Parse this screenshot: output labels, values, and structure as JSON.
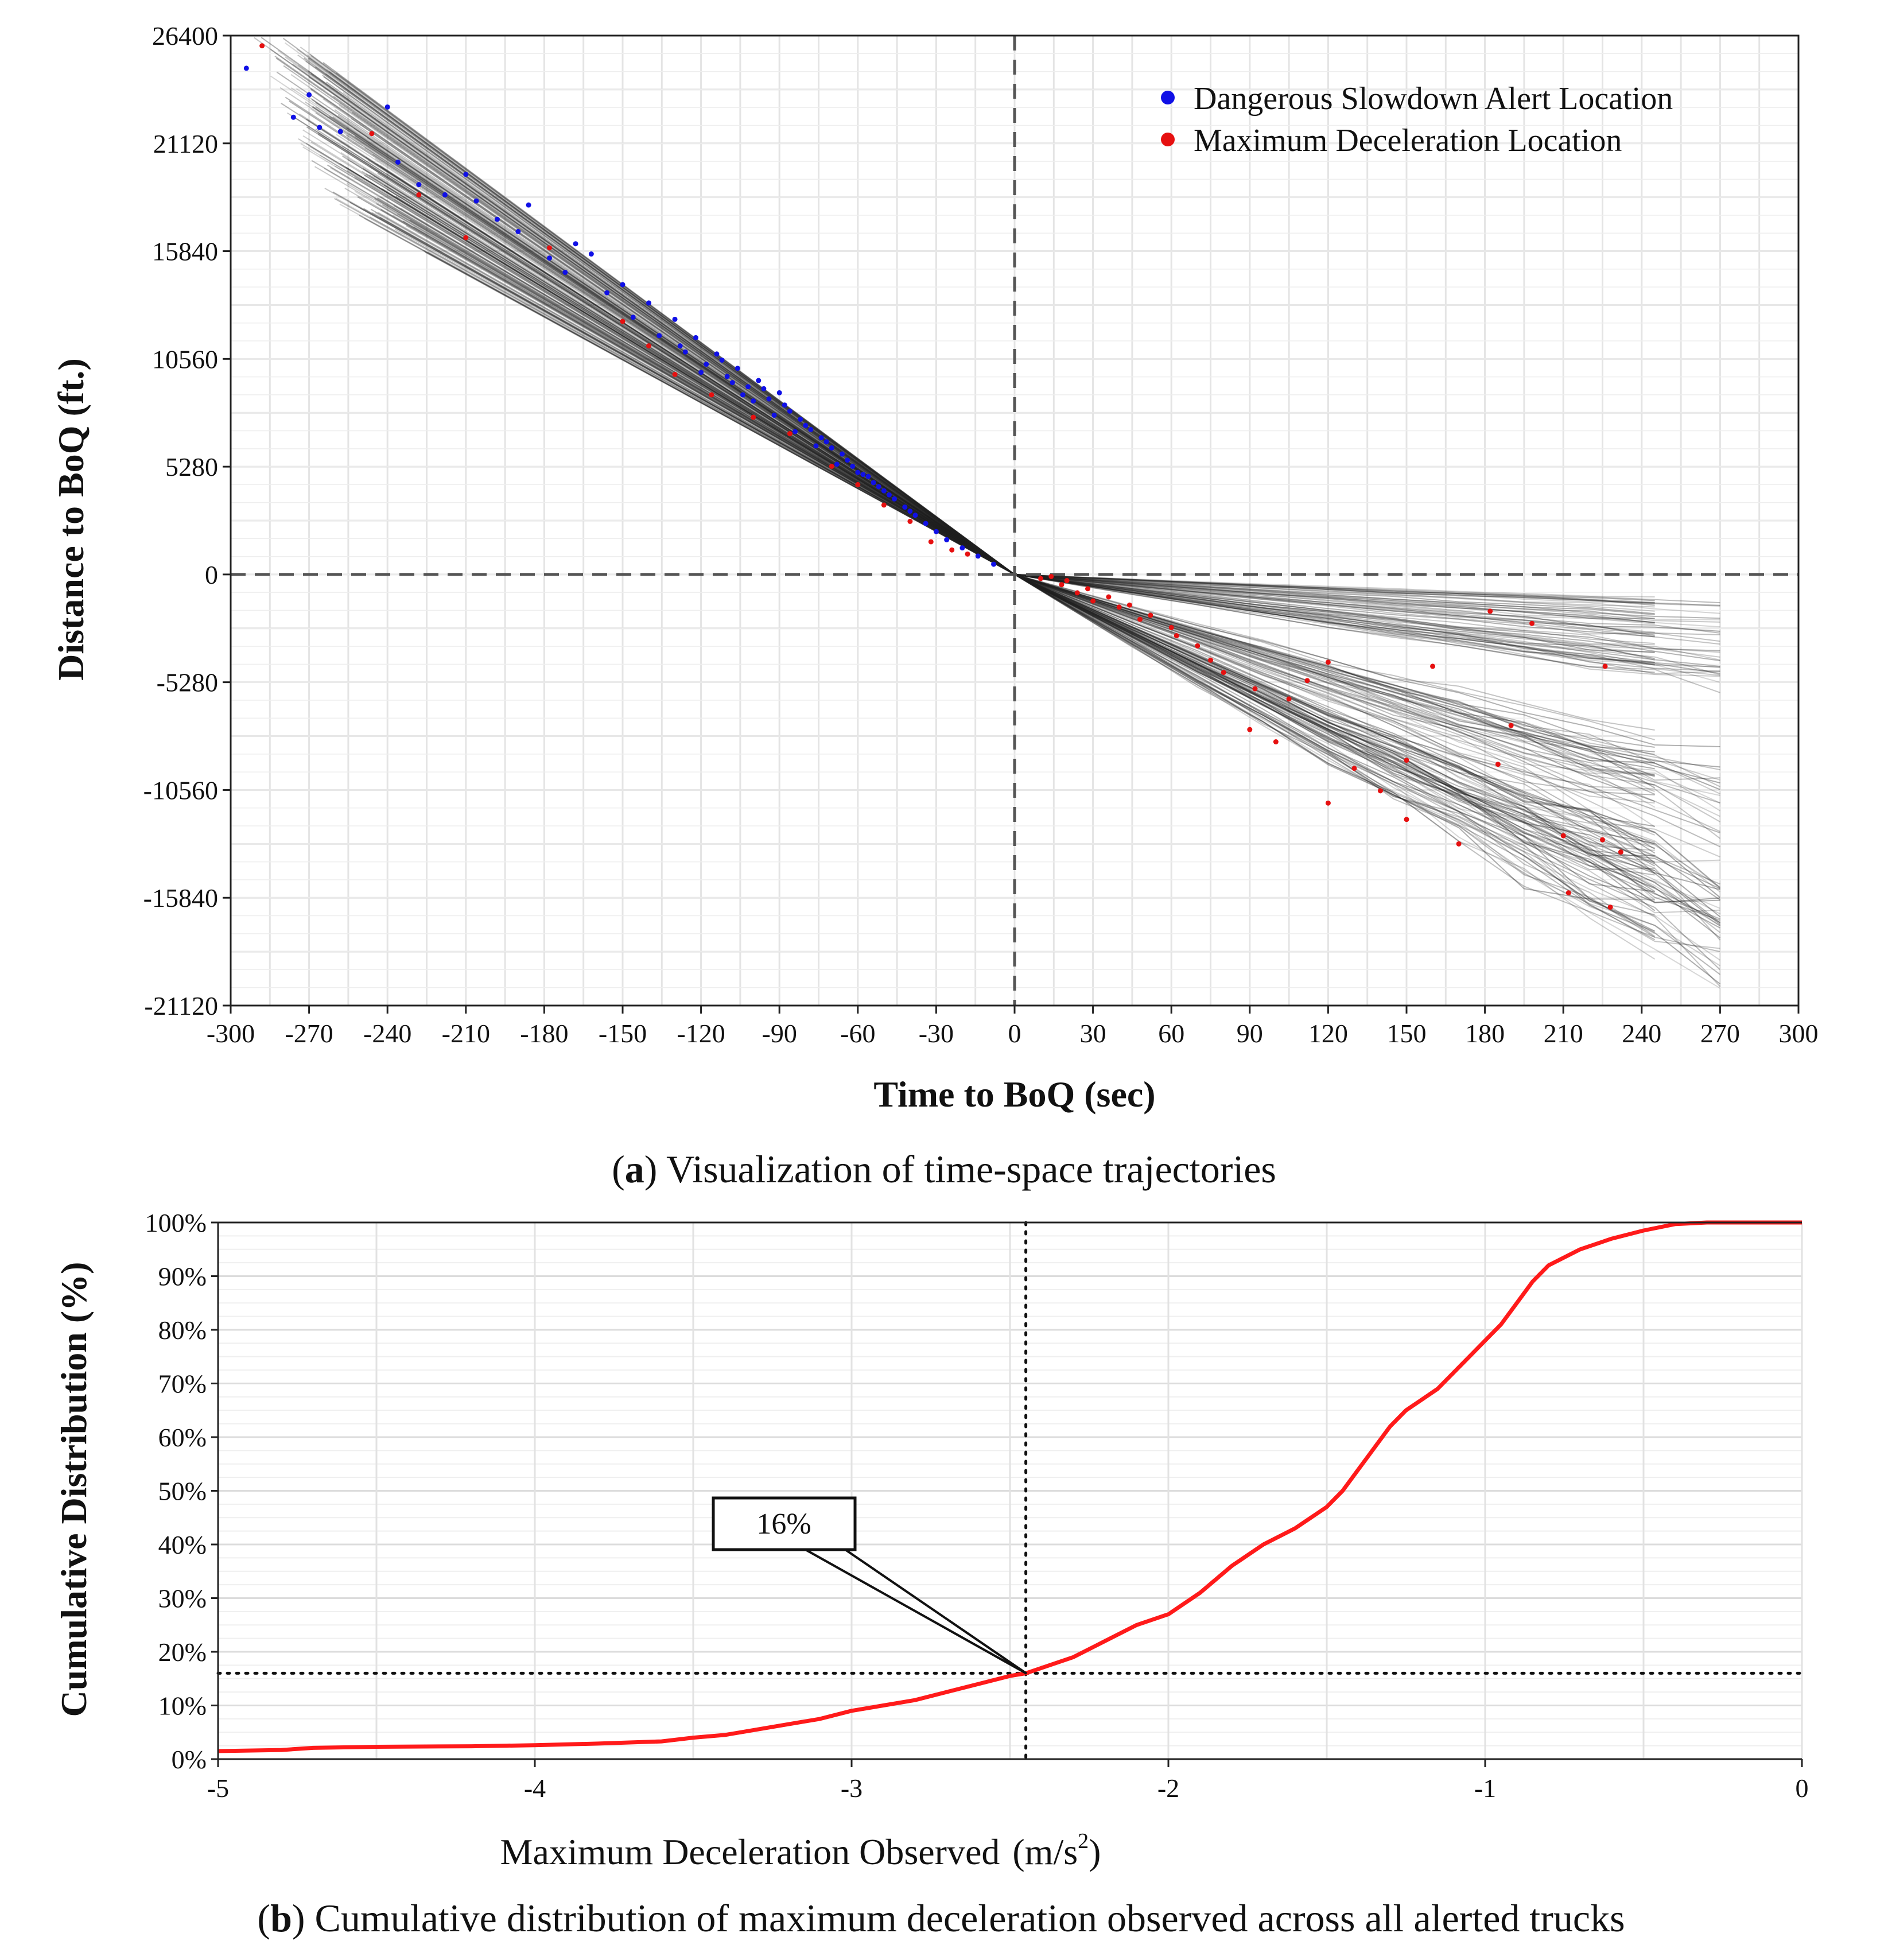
{
  "chart_data": [
    {
      "type": "scatter",
      "panel": "a",
      "caption_letter": "a",
      "caption_rest": ") Visualization of time-space trajectories",
      "xlabel": "Time to BoQ (sec)",
      "ylabel": "Distance to BoQ (ft.)",
      "xlim": [
        -300,
        300
      ],
      "ylim": [
        -21120,
        26400
      ],
      "xticks": [
        -300,
        -270,
        -240,
        -210,
        -180,
        -150,
        -120,
        -90,
        -60,
        -30,
        0,
        30,
        60,
        90,
        120,
        150,
        180,
        210,
        240,
        270,
        300
      ],
      "yticks": [
        26400,
        21120,
        15840,
        10560,
        5280,
        0,
        -5280,
        -10560,
        -15840,
        -21120
      ],
      "grid": true,
      "reference_lines": {
        "x": 0,
        "y": 0,
        "style": "dashed"
      },
      "legend_position": "top-right",
      "series": [
        {
          "name": "Dangerous Slowdown Alert Location",
          "color": "#1010e6",
          "points": [
            [
              -294,
              24800
            ],
            [
              -276,
              22400
            ],
            [
              -270,
              23500
            ],
            [
              -266,
              21900
            ],
            [
              -258,
              21700
            ],
            [
              -240,
              22900
            ],
            [
              -236,
              20200
            ],
            [
              -228,
              19100
            ],
            [
              -218,
              18600
            ],
            [
              -210,
              19600
            ],
            [
              -206,
              18300
            ],
            [
              -198,
              17400
            ],
            [
              -190,
              16800
            ],
            [
              -186,
              18100
            ],
            [
              -178,
              15500
            ],
            [
              -172,
              14800
            ],
            [
              -168,
              16200
            ],
            [
              -162,
              15700
            ],
            [
              -156,
              13800
            ],
            [
              -150,
              14200
            ],
            [
              -146,
              12600
            ],
            [
              -140,
              13300
            ],
            [
              -136,
              11700
            ],
            [
              -130,
              12500
            ],
            [
              -126,
              10900
            ],
            [
              -122,
              11600
            ],
            [
              -118,
              10300
            ],
            [
              -114,
              10800
            ],
            [
              -110,
              9700
            ],
            [
              -106,
              10100
            ],
            [
              -102,
              9200
            ],
            [
              -98,
              9500
            ],
            [
              -94,
              8600
            ],
            [
              -90,
              8900
            ],
            [
              -86,
              8000
            ],
            [
              -82,
              7600
            ],
            [
              -78,
              7100
            ],
            [
              -74,
              6700
            ],
            [
              -70,
              6200
            ],
            [
              -66,
              5900
            ],
            [
              -62,
              5300
            ],
            [
              -58,
              4900
            ],
            [
              -54,
              4500
            ],
            [
              -50,
              4100
            ],
            [
              -46,
              3700
            ],
            [
              -42,
              3300
            ],
            [
              -38,
              2900
            ],
            [
              -34,
              2500
            ],
            [
              -30,
              2100
            ],
            [
              -26,
              1700
            ],
            [
              -20,
              1300
            ],
            [
              -14,
              900
            ],
            [
              -8,
              500
            ],
            [
              -128,
              11200
            ],
            [
              -120,
              9900
            ],
            [
              -112,
              10500
            ],
            [
              -104,
              8800
            ],
            [
              -96,
              9100
            ],
            [
              -88,
              8300
            ],
            [
              -80,
              7300
            ],
            [
              -72,
              6500
            ],
            [
              -64,
              5600
            ],
            [
              -56,
              4800
            ],
            [
              -48,
              3900
            ],
            [
              -40,
              3100
            ],
            [
              -108,
              9400
            ],
            [
              -100,
              8500
            ],
            [
              -92,
              7800
            ],
            [
              -84,
              7000
            ],
            [
              -76,
              6300
            ],
            [
              -68,
              5400
            ],
            [
              -60,
              5000
            ],
            [
              -52,
              4300
            ]
          ]
        },
        {
          "name": "Maximum Deceleration Location",
          "color": "#e61010",
          "points": [
            [
              -288,
              25900
            ],
            [
              -246,
              21600
            ],
            [
              -228,
              18600
            ],
            [
              -210,
              16500
            ],
            [
              -178,
              16000
            ],
            [
              -150,
              12400
            ],
            [
              -140,
              11200
            ],
            [
              -130,
              9800
            ],
            [
              -116,
              8800
            ],
            [
              -100,
              7700
            ],
            [
              -86,
              6900
            ],
            [
              -70,
              5300
            ],
            [
              -60,
              4400
            ],
            [
              -50,
              3400
            ],
            [
              -40,
              2600
            ],
            [
              -32,
              1600
            ],
            [
              -24,
              1200
            ],
            [
              -18,
              1000
            ],
            [
              10,
              -200
            ],
            [
              18,
              -500
            ],
            [
              24,
              -900
            ],
            [
              30,
              -1300
            ],
            [
              36,
              -1100
            ],
            [
              44,
              -1500
            ],
            [
              52,
              -2000
            ],
            [
              60,
              -2600
            ],
            [
              70,
              -3500
            ],
            [
              80,
              -4800
            ],
            [
              90,
              -7600
            ],
            [
              100,
              -8200
            ],
            [
              105,
              -6100
            ],
            [
              112,
              -5200
            ],
            [
              120,
              -4300
            ],
            [
              130,
              -9500
            ],
            [
              140,
              -10600
            ],
            [
              150,
              -12000
            ],
            [
              160,
              -4500
            ],
            [
              170,
              -13200
            ],
            [
              182,
              -1800
            ],
            [
              190,
              -7400
            ],
            [
              198,
              -2400
            ],
            [
              210,
              -12800
            ],
            [
              212,
              -15600
            ],
            [
              225,
              -13000
            ],
            [
              226,
              -4500
            ],
            [
              232,
              -13600
            ],
            [
              228,
              -16300
            ],
            [
              185,
              -9300
            ],
            [
              150,
              -9100
            ],
            [
              120,
              -11200
            ],
            [
              92,
              -5600
            ],
            [
              75,
              -4200
            ],
            [
              62,
              -3000
            ],
            [
              48,
              -2200
            ],
            [
              40,
              -1600
            ],
            [
              28,
              -700
            ],
            [
              20,
              -300
            ],
            [
              14,
              -100
            ]
          ]
        }
      ]
    },
    {
      "type": "line",
      "panel": "b",
      "caption_letter": "b",
      "caption_rest": ") Cumulative distribution of maximum deceleration observed across all alerted trucks",
      "xlabel": "Maximum Deceleration Observed",
      "xunit_base": "(m/s",
      "xunit_exp": "2",
      "xunit_close": ")",
      "ylabel": "Cumulative Distribution (%)",
      "xlim": [
        -5,
        0
      ],
      "ylim": [
        0,
        100
      ],
      "xticks": [
        -5,
        -4,
        -3,
        -2,
        -1,
        0
      ],
      "yticks": [
        0,
        10,
        20,
        30,
        40,
        50,
        60,
        70,
        80,
        90,
        100
      ],
      "ytick_labels": [
        "0%",
        "10%",
        "20%",
        "30%",
        "40%",
        "50%",
        "60%",
        "70%",
        "80%",
        "90%",
        "100%"
      ],
      "grid": true,
      "series": [
        {
          "name": "CDF",
          "color": "#ff1a1a",
          "x": [
            -5.0,
            -4.8,
            -4.7,
            -4.5,
            -4.2,
            -4.0,
            -3.8,
            -3.6,
            -3.5,
            -3.4,
            -3.3,
            -3.2,
            -3.1,
            -3.0,
            -2.9,
            -2.8,
            -2.7,
            -2.6,
            -2.5,
            -2.45,
            -2.4,
            -2.3,
            -2.2,
            -2.1,
            -2.0,
            -1.9,
            -1.8,
            -1.7,
            -1.6,
            -1.5,
            -1.45,
            -1.4,
            -1.35,
            -1.3,
            -1.25,
            -1.2,
            -1.15,
            -1.1,
            -1.05,
            -1.0,
            -0.95,
            -0.9,
            -0.85,
            -0.8,
            -0.7,
            -0.6,
            -0.5,
            -0.4,
            -0.3,
            0.0
          ],
          "y": [
            1.5,
            1.7,
            2.1,
            2.3,
            2.4,
            2.6,
            2.9,
            3.3,
            4.0,
            4.5,
            5.5,
            6.5,
            7.5,
            9.0,
            10.0,
            11.0,
            12.5,
            14.0,
            15.5,
            16.0,
            17.0,
            19.0,
            22.0,
            25.0,
            27.0,
            31.0,
            36.0,
            40.0,
            43.0,
            47.0,
            50.0,
            54.0,
            58.0,
            62.0,
            65.0,
            67.0,
            69.0,
            72.0,
            75.0,
            78.0,
            81.0,
            85.0,
            89.0,
            92.0,
            95.0,
            97.0,
            98.5,
            99.7,
            100.0,
            100.0
          ]
        }
      ],
      "annotation": {
        "text": "16%",
        "x": -2.45,
        "y": 16
      },
      "reference_lines": {
        "x": -2.45,
        "y": 16,
        "style": "dotted"
      }
    }
  ]
}
